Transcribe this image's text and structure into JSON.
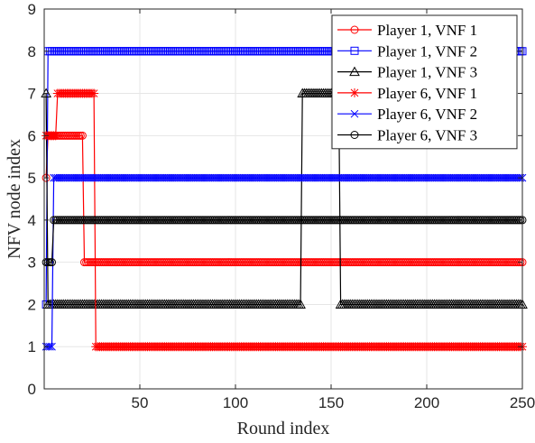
{
  "chart_data": {
    "type": "line",
    "title": "",
    "xlabel": "Round index",
    "ylabel": "NFV node index",
    "xlim": [
      0,
      250
    ],
    "ylim": [
      0,
      9
    ],
    "xticks": [
      50,
      100,
      150,
      200,
      250
    ],
    "yticks": [
      0,
      1,
      2,
      3,
      4,
      5,
      6,
      7,
      8,
      9
    ],
    "grid": true,
    "legend_position": "top-right",
    "series": [
      {
        "name": "Player 1, VNF 1",
        "color": "#ff0000",
        "marker": "circle",
        "points": [
          [
            1,
            5
          ],
          [
            2,
            6
          ],
          [
            20,
            6
          ],
          [
            21,
            3
          ],
          [
            250,
            3
          ]
        ]
      },
      {
        "name": "Player 1, VNF 2",
        "color": "#0000ff",
        "marker": "square",
        "points": [
          [
            1,
            2
          ],
          [
            2,
            8
          ],
          [
            250,
            8
          ]
        ]
      },
      {
        "name": "Player 1, VNF 3",
        "color": "#000000",
        "marker": "triangle",
        "points": [
          [
            1,
            7
          ],
          [
            2,
            2
          ],
          [
            134,
            2
          ],
          [
            135,
            7
          ],
          [
            154,
            7
          ],
          [
            155,
            2
          ],
          [
            250,
            2
          ]
        ]
      },
      {
        "name": "Player 6, VNF 1",
        "color": "#ff0000",
        "marker": "star",
        "points": [
          [
            1,
            6
          ],
          [
            6,
            6
          ],
          [
            7,
            7
          ],
          [
            26,
            7
          ],
          [
            27,
            1
          ],
          [
            250,
            1
          ]
        ]
      },
      {
        "name": "Player 6, VNF 2",
        "color": "#0000ff",
        "marker": "x",
        "points": [
          [
            1,
            1
          ],
          [
            4,
            1
          ],
          [
            5,
            5
          ],
          [
            250,
            5
          ]
        ]
      },
      {
        "name": "Player 6, VNF 3",
        "color": "#000000",
        "marker": "circle",
        "points": [
          [
            1,
            3
          ],
          [
            4,
            3
          ],
          [
            5,
            4
          ],
          [
            250,
            4
          ]
        ]
      }
    ]
  }
}
